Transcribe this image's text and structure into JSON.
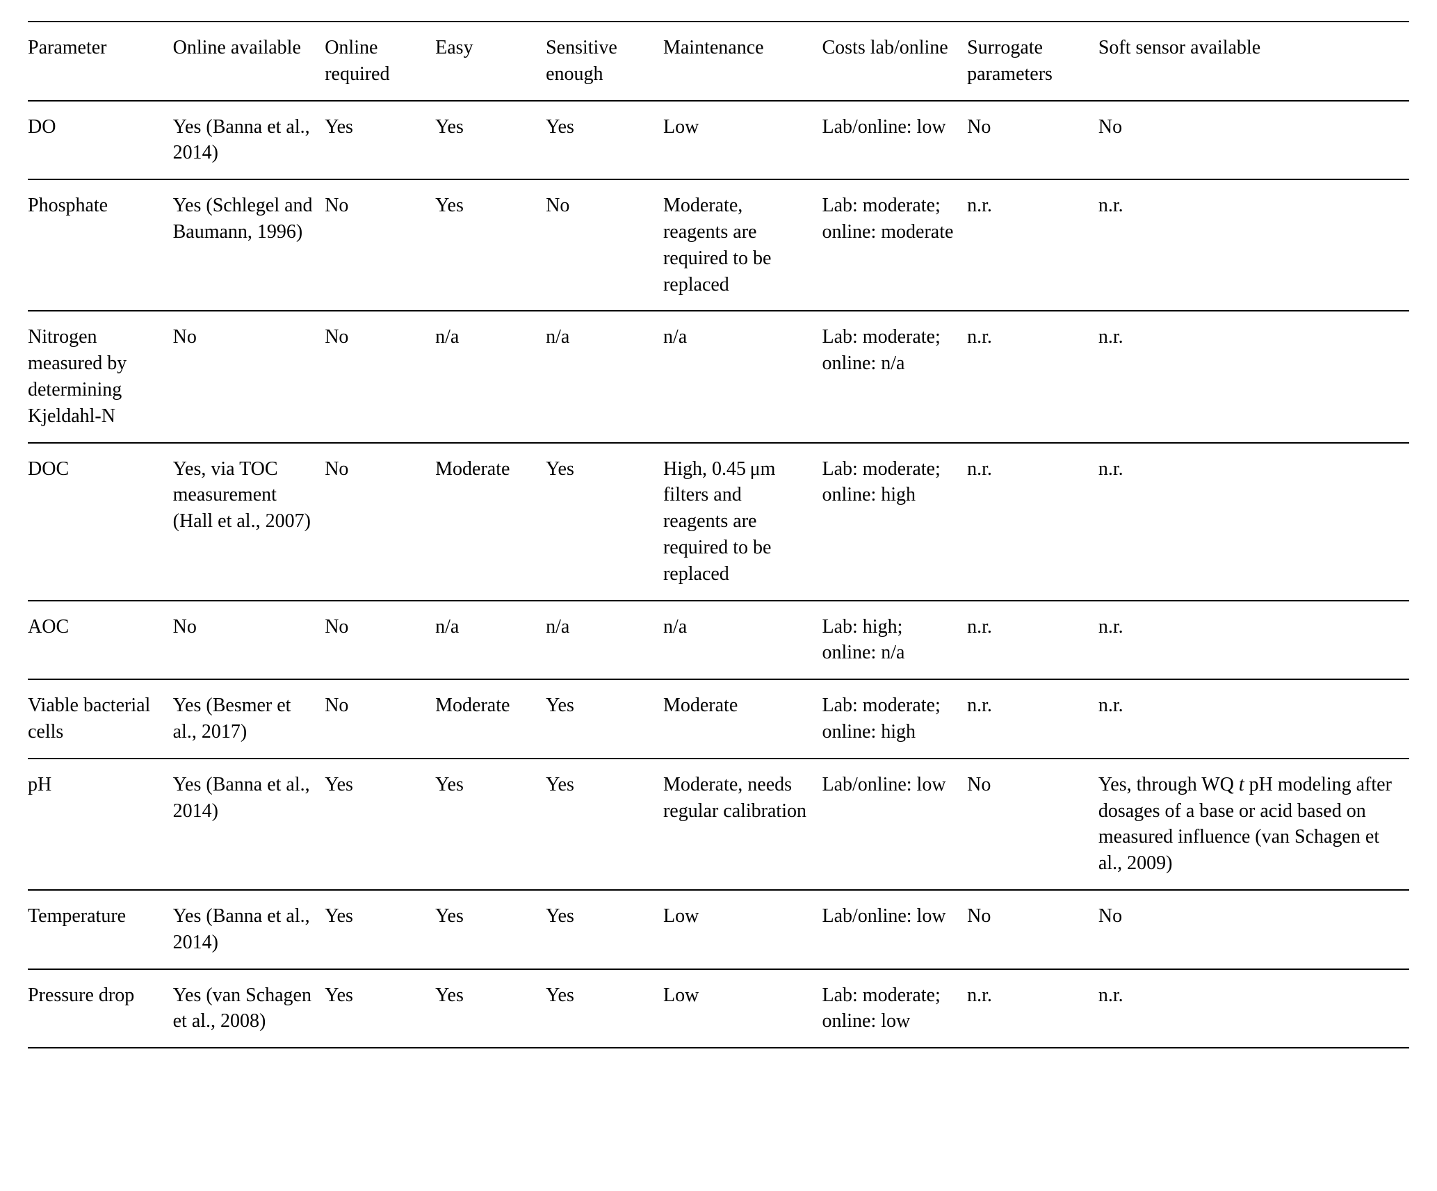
{
  "table": {
    "column_widths_pct": [
      10.5,
      11,
      8,
      8,
      8.5,
      11.5,
      10.5,
      9.5,
      22.5
    ],
    "headers": [
      "Parameter",
      "Online available",
      "Online required",
      "Easy",
      "Sensitive enough",
      "Maintenance",
      "Costs lab/online",
      "Surrogate parameters",
      "Soft sensor available"
    ],
    "rows": [
      {
        "parameter": "DO",
        "online_available": "Yes (Banna et al., 2014)",
        "online_required": "Yes",
        "easy": "Yes",
        "sensitive": "Yes",
        "maintenance": "Low",
        "costs": "Lab/online: low",
        "surrogate": "No",
        "soft_sensor": "No"
      },
      {
        "parameter": "Phosphate",
        "online_available": "Yes (Schlegel and Baumann, 1996)",
        "online_required": "No",
        "easy": "Yes",
        "sensitive": "No",
        "maintenance": "Moderate, reagents are required to be replaced",
        "costs": "Lab: moderate; online: moderate",
        "surrogate": "n.r.",
        "soft_sensor": "n.r."
      },
      {
        "parameter": "Nitrogen measured by determining Kjeldahl-N",
        "online_available": "No",
        "online_required": "No",
        "easy": "n/a",
        "sensitive": "n/a",
        "maintenance": "n/a",
        "costs": "Lab: moderate; online: n/a",
        "surrogate": "n.r.",
        "soft_sensor": "n.r."
      },
      {
        "parameter": "DOC",
        "online_available": "Yes, via TOC measurement (Hall et al., 2007)",
        "online_required": "No",
        "easy": "Moderate",
        "sensitive": "Yes",
        "maintenance": "High, 0.45 μm filters and reagents are required to be replaced",
        "costs": "Lab: moderate; online: high",
        "surrogate": "n.r.",
        "soft_sensor": "n.r."
      },
      {
        "parameter": "AOC",
        "online_available": "No",
        "online_required": "No",
        "easy": "n/a",
        "sensitive": "n/a",
        "maintenance": "n/a",
        "costs": "Lab: high; online: n/a",
        "surrogate": "n.r.",
        "soft_sensor": "n.r."
      },
      {
        "parameter": "Viable bacterial cells",
        "online_available": "Yes (Besmer et al., 2017)",
        "online_required": "No",
        "easy": "Moderate",
        "sensitive": "Yes",
        "maintenance": "Moderate",
        "costs": "Lab: moderate; online: high",
        "surrogate": "n.r.",
        "soft_sensor": "n.r."
      },
      {
        "parameter": "pH",
        "online_available": "Yes (Banna et al., 2014)",
        "online_required": "Yes",
        "easy": "Yes",
        "sensitive": "Yes",
        "maintenance": "Moderate, needs regular calibration",
        "costs": "Lab/online: low",
        "surrogate": "No",
        "soft_sensor_pre": "Yes, through WQ ",
        "soft_sensor_ital": "t",
        "soft_sensor_post": " pH modeling after dosages of a base or acid based on measured influence (van Schagen et al., 2009)"
      },
      {
        "parameter": "Temperature",
        "online_available": "Yes (Banna et al., 2014)",
        "online_required": "Yes",
        "easy": "Yes",
        "sensitive": "Yes",
        "maintenance": "Low",
        "costs": "Lab/online: low",
        "surrogate": "No",
        "soft_sensor": "No"
      },
      {
        "parameter": "Pressure drop",
        "online_available": "Yes (van Schagen et al., 2008)",
        "online_required": "Yes",
        "easy": "Yes",
        "sensitive": "Yes",
        "maintenance": "Low",
        "costs": "Lab: moderate; online: low",
        "surrogate": "n.r.",
        "soft_sensor": "n.r."
      }
    ]
  }
}
